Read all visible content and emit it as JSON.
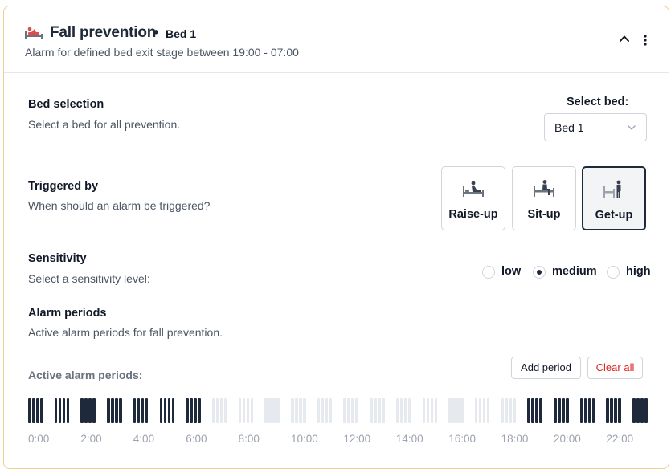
{
  "header": {
    "title": "Fall prevention",
    "separator": "•",
    "bed_badge": "Bed 1",
    "subtitle": "Alarm for defined bed exit stage between 19:00 - 07:00",
    "icon": "bed-alarm-icon"
  },
  "bed_selection": {
    "title": "Bed selection",
    "description": "Select a bed for all prevention.",
    "select_label": "Select bed:",
    "selected_value": "Bed 1"
  },
  "triggered_by": {
    "title": "Triggered by",
    "description": "When should an alarm be triggered?",
    "options": [
      {
        "label": "Raise-up",
        "icon": "raise-up-icon",
        "selected": false
      },
      {
        "label": "Sit-up",
        "icon": "sit-up-icon",
        "selected": false
      },
      {
        "label": "Get-up",
        "icon": "get-up-icon",
        "selected": true
      }
    ]
  },
  "sensitivity": {
    "title": "Sensitivity",
    "description": "Select a sensitivity level:",
    "options": [
      {
        "label": "low",
        "selected": false
      },
      {
        "label": "medium",
        "selected": true
      },
      {
        "label": "high",
        "selected": false
      }
    ]
  },
  "alarm_periods": {
    "title": "Alarm periods",
    "description": "Active alarm periods for fall prevention.",
    "active_label": "Active alarm periods:",
    "add_button": "Add period",
    "clear_button": "Clear all",
    "hours_active": [
      true,
      true,
      true,
      true,
      true,
      true,
      true,
      false,
      false,
      false,
      false,
      false,
      false,
      false,
      false,
      false,
      false,
      false,
      false,
      true,
      true,
      true,
      true,
      true
    ],
    "ticks": [
      "0:00",
      "2:00",
      "4:00",
      "6:00",
      "8:00",
      "10:00",
      "12:00",
      "14:00",
      "16:00",
      "18:00",
      "20:00",
      "22:00"
    ]
  },
  "colors": {
    "card_border": "#f2cc8f",
    "active_bar": "#1e2a3b",
    "inactive_bar": "#e6e9ee",
    "clear_text": "#dc2626"
  }
}
